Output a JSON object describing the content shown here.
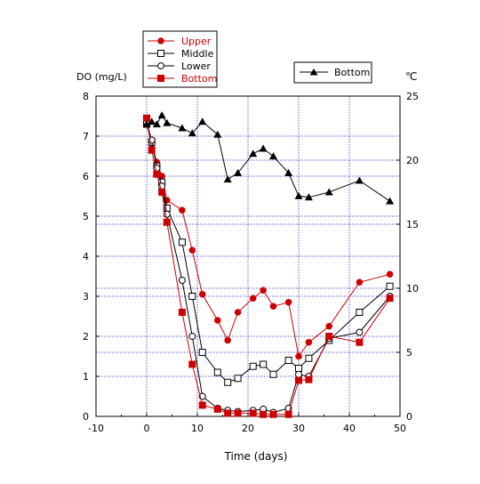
{
  "chart_data": {
    "type": "line",
    "xlabel": "Time (days)",
    "ylabel_left": "DO (mg/L)",
    "ylabel_right": "℃",
    "xlim": [
      -10,
      50
    ],
    "ylim_left": [
      0,
      8
    ],
    "ylim_right": [
      0,
      25
    ],
    "xticks": [
      -10,
      0,
      10,
      20,
      30,
      40,
      50
    ],
    "yticks_left": [
      0,
      1,
      2,
      3,
      4,
      5,
      6,
      7,
      8
    ],
    "yticks_right": [
      0,
      5,
      10,
      15,
      20,
      25
    ],
    "grid": true,
    "legend_do": [
      "Upper",
      "Middle",
      "Lower",
      "Bottom"
    ],
    "legend_temp": [
      "Bottom"
    ],
    "series": [
      {
        "name": "Upper",
        "axis": "left",
        "color": "#cc0000",
        "marker": "filled-circle",
        "x": [
          0,
          1,
          2,
          3,
          4,
          7,
          9,
          11,
          14,
          16,
          18,
          21,
          23,
          25,
          28,
          30,
          32,
          36,
          42,
          48
        ],
        "y": [
          7.4,
          6.8,
          6.35,
          6.0,
          5.4,
          5.15,
          4.15,
          3.05,
          2.4,
          1.9,
          2.6,
          2.95,
          3.15,
          2.75,
          2.85,
          1.5,
          1.85,
          2.25,
          3.35,
          3.55
        ]
      },
      {
        "name": "Middle",
        "axis": "left",
        "color": "#000000",
        "marker": "open-square",
        "x": [
          0,
          1,
          2,
          3,
          4,
          7,
          9,
          11,
          14,
          16,
          18,
          21,
          23,
          25,
          28,
          30,
          32,
          36,
          42,
          48
        ],
        "y": [
          7.3,
          6.85,
          6.25,
          5.85,
          5.2,
          4.35,
          3.0,
          1.6,
          1.1,
          0.85,
          0.95,
          1.25,
          1.3,
          1.05,
          1.4,
          1.2,
          1.45,
          1.9,
          2.6,
          3.25
        ]
      },
      {
        "name": "Lower",
        "axis": "left",
        "color": "#000000",
        "marker": "open-circle",
        "x": [
          0,
          1,
          2,
          3,
          4,
          7,
          9,
          11,
          14,
          16,
          18,
          21,
          23,
          25,
          28,
          30,
          32,
          36,
          42,
          48
        ],
        "y": [
          7.35,
          6.9,
          6.2,
          5.75,
          5.05,
          3.4,
          2.0,
          0.5,
          0.2,
          0.15,
          0.12,
          0.15,
          0.18,
          0.1,
          0.2,
          1.05,
          1.0,
          1.95,
          2.1,
          3.0
        ]
      },
      {
        "name": "Bottom",
        "axis": "left",
        "color": "#cc0000",
        "marker": "filled-square",
        "x": [
          0,
          1,
          2,
          3,
          4,
          7,
          9,
          11,
          14,
          16,
          18,
          21,
          23,
          25,
          28,
          30,
          32,
          36,
          42,
          48
        ],
        "y": [
          7.45,
          6.65,
          6.05,
          5.6,
          4.85,
          2.6,
          1.3,
          0.28,
          0.18,
          0.08,
          0.08,
          0.08,
          0.05,
          0.05,
          0.05,
          0.9,
          0.92,
          2.0,
          1.85,
          2.95
        ]
      },
      {
        "name": "Bottom",
        "axis": "right",
        "color": "#000000",
        "marker": "filled-triangle",
        "x": [
          0,
          1,
          2,
          3,
          4,
          7,
          9,
          11,
          14,
          16,
          18,
          21,
          23,
          25,
          28,
          30,
          32,
          36,
          42,
          48
        ],
        "y": [
          22.8,
          23.0,
          22.8,
          23.5,
          22.9,
          22.5,
          22.1,
          23.0,
          22.0,
          18.5,
          19.0,
          20.5,
          20.9,
          20.3,
          19.0,
          17.2,
          17.1,
          17.5,
          18.4,
          16.8
        ]
      }
    ]
  }
}
